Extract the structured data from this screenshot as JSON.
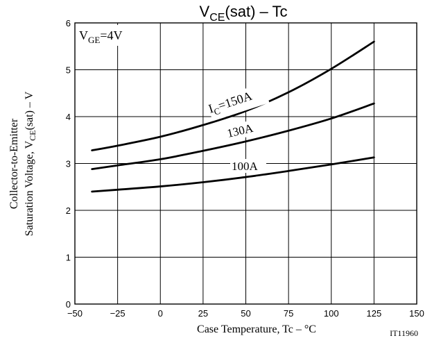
{
  "chart_data": {
    "type": "line",
    "title": "VCE(sat) – Tc",
    "title_main": "V",
    "title_sub": "CE",
    "title_rest": "(sat)  –  Tc",
    "xlabel": "Case Temperature, Tc  –  °C",
    "ylabel_line1": "Collector-to-Emitter",
    "ylabel_line2_main": "Saturation Voltage, V",
    "ylabel_line2_sub": "CE",
    "ylabel_line2_rest": "(sat)  –  V",
    "xlim": [
      -50,
      150
    ],
    "ylim": [
      0,
      6
    ],
    "xticks": [
      "−50",
      "−25",
      "0",
      "25",
      "50",
      "75",
      "100",
      "125",
      "150"
    ],
    "yticks": [
      "0",
      "1",
      "2",
      "3",
      "4",
      "5",
      "6"
    ],
    "grid": true,
    "condition_main": "V",
    "condition_sub": "GE",
    "condition_rest": "=4V",
    "figure_code": "IT11960",
    "series": [
      {
        "name": "IC=150A",
        "label_main": "I",
        "label_sub": "C",
        "label_rest": "=150A",
        "x": [
          -40,
          -25,
          0,
          25,
          50,
          75,
          100,
          125
        ],
        "y": [
          3.28,
          3.38,
          3.57,
          3.82,
          4.12,
          4.52,
          5.02,
          5.6
        ]
      },
      {
        "name": "130A",
        "label_main": "130A",
        "x": [
          -40,
          -25,
          0,
          25,
          50,
          75,
          100,
          125
        ],
        "y": [
          2.88,
          2.96,
          3.09,
          3.27,
          3.47,
          3.7,
          3.96,
          4.28
        ]
      },
      {
        "name": "100A",
        "label_main": "100A",
        "x": [
          -40,
          -25,
          0,
          25,
          50,
          75,
          100,
          125
        ],
        "y": [
          2.4,
          2.44,
          2.51,
          2.6,
          2.71,
          2.84,
          2.98,
          3.13
        ]
      }
    ]
  }
}
